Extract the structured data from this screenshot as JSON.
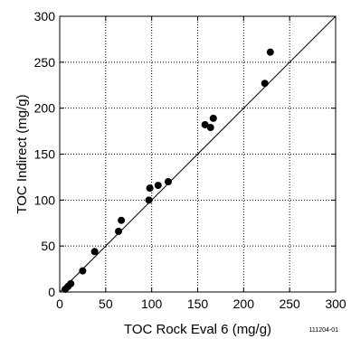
{
  "chart_data": {
    "type": "scatter",
    "xlabel": "TOC Rock Eval 6 (mg/g)",
    "ylabel": "TOC Indirect (mg/g)",
    "xlim": [
      0,
      300
    ],
    "ylim": [
      0,
      300
    ],
    "xticks": [
      0,
      50,
      100,
      150,
      200,
      250,
      300
    ],
    "yticks": [
      0,
      50,
      100,
      150,
      200,
      250,
      300
    ],
    "grid": "dotted",
    "reference_line": {
      "type": "y=x",
      "from": [
        0,
        0
      ],
      "to": [
        300,
        300
      ]
    },
    "figure_id": "111204-01",
    "points": [
      {
        "x": 6,
        "y": 3
      },
      {
        "x": 9,
        "y": 6
      },
      {
        "x": 12,
        "y": 9
      },
      {
        "x": 25,
        "y": 23
      },
      {
        "x": 38,
        "y": 44
      },
      {
        "x": 64,
        "y": 66
      },
      {
        "x": 67,
        "y": 78
      },
      {
        "x": 97,
        "y": 100
      },
      {
        "x": 98,
        "y": 113
      },
      {
        "x": 107,
        "y": 116
      },
      {
        "x": 118,
        "y": 120
      },
      {
        "x": 158,
        "y": 182
      },
      {
        "x": 164,
        "y": 179
      },
      {
        "x": 167,
        "y": 189
      },
      {
        "x": 223,
        "y": 227
      },
      {
        "x": 229,
        "y": 261
      }
    ]
  }
}
